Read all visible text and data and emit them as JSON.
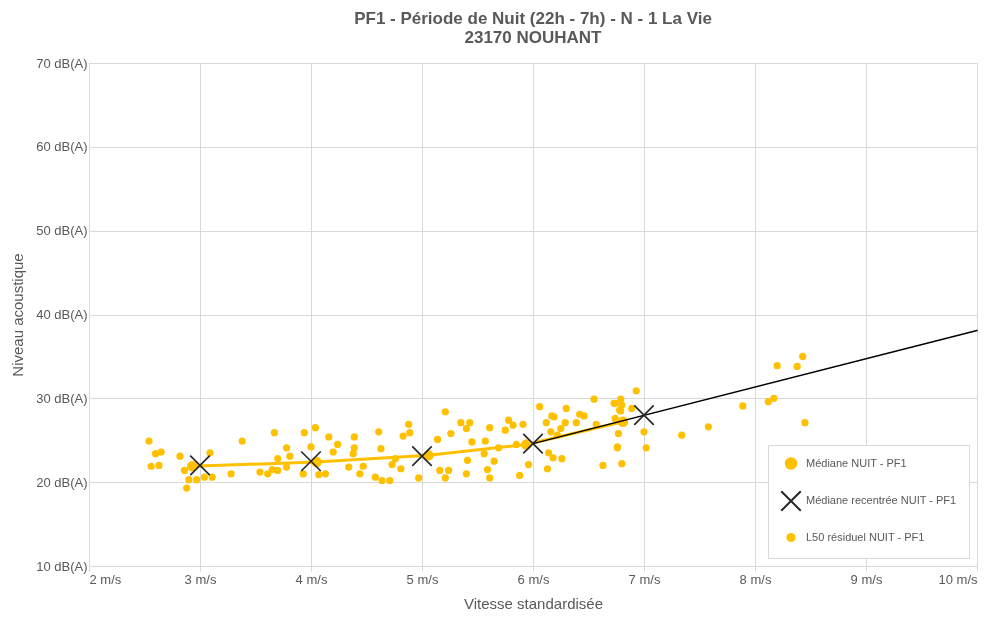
{
  "chart_data": {
    "type": "line",
    "title": [
      "PF1 - Période de Nuit (22h - 7h) - N - 1 La Vie",
      "23170 NOUHANT"
    ],
    "xlabel": "Vitesse standardisée",
    "ylabel": "Niveau acoustique",
    "xlim": [
      2,
      10
    ],
    "ylim": [
      10,
      70
    ],
    "xticks": [
      {
        "value": 2,
        "label": "2 m/s"
      },
      {
        "value": 3,
        "label": "3 m/s"
      },
      {
        "value": 4,
        "label": "4 m/s"
      },
      {
        "value": 5,
        "label": "5 m/s"
      },
      {
        "value": 6,
        "label": "6 m/s"
      },
      {
        "value": 7,
        "label": "7 m/s"
      },
      {
        "value": 8,
        "label": "8 m/s"
      },
      {
        "value": 9,
        "label": "9 m/s"
      },
      {
        "value": 10,
        "label": "10 m/s"
      }
    ],
    "yticks": [
      {
        "value": 10,
        "label": "10 dB(A)"
      },
      {
        "value": 20,
        "label": "20 dB(A)"
      },
      {
        "value": 30,
        "label": "30 dB(A)"
      },
      {
        "value": 40,
        "label": "40 dB(A)"
      },
      {
        "value": 50,
        "label": "50 dB(A)"
      },
      {
        "value": 60,
        "label": "60 dB(A)"
      },
      {
        "value": 70,
        "label": "70 dB(A)"
      }
    ],
    "grid": true,
    "legend": "bottom right",
    "series": [
      {
        "name": "Médiane NUIT - PF1",
        "marker": "circle",
        "color": "#ffc000",
        "x": [
          2.93,
          4.05,
          5.06,
          5.94,
          6.81
        ],
        "values": [
          21.9,
          22.4,
          23.2,
          24.5,
          27.2
        ]
      },
      {
        "name": "Médiane recentrée NUIT - PF1",
        "type": "scatter",
        "marker": "cross",
        "color": "#262626",
        "x": [
          3,
          4,
          5,
          6,
          7
        ],
        "values": [
          22.0,
          22.5,
          23.1,
          24.6,
          28.0
        ]
      },
      {
        "name": "L50 résiduel NUIT - PF1",
        "type": "scatter",
        "marker": "circle",
        "color": "#ffc000",
        "x": [
          2.54,
          2.6,
          2.65,
          2.56,
          2.63,
          2.82,
          2.86,
          2.88,
          2.9,
          2.97,
          3.04,
          3.09,
          3.11,
          3.28,
          3.38,
          3.54,
          3.61,
          3.65,
          3.7,
          3.67,
          3.78,
          3.81,
          3.7,
          3.78,
          3.94,
          4.04,
          4.0,
          4.16,
          4.24,
          4.2,
          4.39,
          4.39,
          4.38,
          4.61,
          4.63,
          4.34,
          4.44,
          4.47,
          4.58,
          4.64,
          4.71,
          3.93,
          4.07,
          4.13,
          4.88,
          4.89,
          4.83,
          4.76,
          4.73,
          4.81,
          4.97,
          5.14,
          5.21,
          5.26,
          5.16,
          5.24,
          5.21,
          5.35,
          5.4,
          5.43,
          5.45,
          5.41,
          5.4,
          5.57,
          5.61,
          5.56,
          5.59,
          5.61,
          5.65,
          5.69,
          5.75,
          5.78,
          5.82,
          5.85,
          5.91,
          5.88,
          5.96,
          6.06,
          6.12,
          6.17,
          6.16,
          6.19,
          6.22,
          6.14,
          6.18,
          6.13,
          6.26,
          6.3,
          6.29,
          6.25,
          6.39,
          6.42,
          6.46,
          6.55,
          6.57,
          6.63,
          6.74,
          6.76,
          6.8,
          6.79,
          6.93,
          7.0,
          7.02,
          6.73,
          6.79,
          6.8,
          6.78,
          6.89,
          6.74,
          6.77,
          6.76,
          7.34,
          7.58,
          7.89,
          8.12,
          8.17,
          8.2,
          8.38,
          8.43,
          8.45
        ],
        "values": [
          24.9,
          23.4,
          23.6,
          21.9,
          22.0,
          23.1,
          21.4,
          19.3,
          20.3,
          20.3,
          20.6,
          23.5,
          20.6,
          21.0,
          24.9,
          21.2,
          21.0,
          21.5,
          21.4,
          25.9,
          24.1,
          23.1,
          22.8,
          21.8,
          25.9,
          26.5,
          24.2,
          25.4,
          24.5,
          23.6,
          25.4,
          24.1,
          23.4,
          26.0,
          24.0,
          21.8,
          21.0,
          21.9,
          20.6,
          20.2,
          20.2,
          21.0,
          20.9,
          21.0,
          26.9,
          25.9,
          25.5,
          22.8,
          22.1,
          21.6,
          20.5,
          25.1,
          28.4,
          25.8,
          21.4,
          21.4,
          20.5,
          27.1,
          26.4,
          27.1,
          24.8,
          22.6,
          21.0,
          24.9,
          26.5,
          23.4,
          21.5,
          20.5,
          22.5,
          24.1,
          26.2,
          27.4,
          26.8,
          24.5,
          26.9,
          20.8,
          22.1,
          29.0,
          27.1,
          27.9,
          26.0,
          27.8,
          25.6,
          23.5,
          22.9,
          21.6,
          22.8,
          28.8,
          27.1,
          26.4,
          27.1,
          28.1,
          27.9,
          29.9,
          26.9,
          22.0,
          29.4,
          24.1,
          22.2,
          28.5,
          30.9,
          26.0,
          24.1,
          29.4,
          29.9,
          29.2,
          28.6,
          28.8,
          27.6,
          25.8,
          24.2,
          25.6,
          26.6,
          29.1,
          29.6,
          30.0,
          33.9,
          33.8,
          35.0,
          27.1
        ]
      },
      {
        "marker": "none",
        "color": "#000000",
        "x": [
          6,
          10
        ],
        "values": [
          24.6,
          38.1
        ]
      }
    ]
  }
}
